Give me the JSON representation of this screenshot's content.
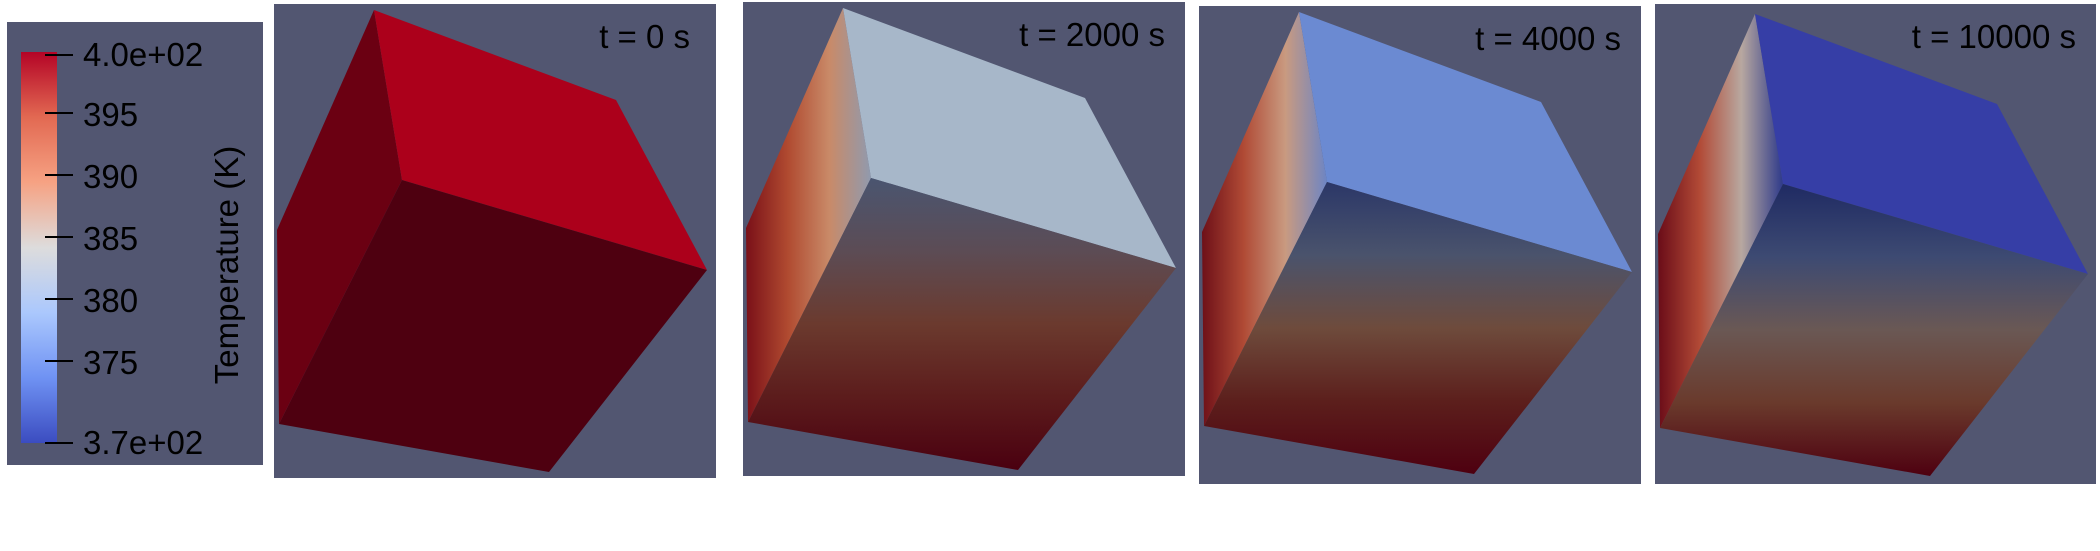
{
  "legend": {
    "title": "Temperature (K)",
    "max_label": "4.0e+02",
    "min_label": "3.7e+02",
    "ticks": [
      "395",
      "390",
      "385",
      "380",
      "375"
    ],
    "colormap": [
      "#b40426",
      "#e26952",
      "#f6a283",
      "#dddcdc",
      "#abc8fd",
      "#6f92f3",
      "#3b4cc0"
    ]
  },
  "panels": [
    {
      "label": "t = 0 s",
      "left_face": {
        "type": "solid",
        "color": "#6b0012"
      },
      "top_face": {
        "type": "solid",
        "color": "#ac001b"
      },
      "front_face": {
        "type": "solid",
        "color": "#4e0010"
      }
    },
    {
      "label": "t = 2000 s",
      "left_face": {
        "type": "gradient",
        "colors": [
          "#7a1018",
          "#b04a30",
          "#c98a68",
          "#909aae"
        ]
      },
      "top_face": {
        "type": "solid",
        "color": "#a7b7c9"
      },
      "front_face": {
        "type": "gradient",
        "colors": [
          "#4a5570",
          "#5c4c55",
          "#6b3a2e",
          "#5c1c1c",
          "#4a0010"
        ]
      }
    },
    {
      "label": "t = 4000 s",
      "left_face": {
        "type": "gradient",
        "colors": [
          "#6e1018",
          "#b04a35",
          "#c99a80",
          "#6d85c4"
        ]
      },
      "top_face": {
        "type": "solid",
        "color": "#6b8ad2"
      },
      "front_face": {
        "type": "gradient",
        "colors": [
          "#2b3768",
          "#4a536c",
          "#6e4b3c",
          "#5c1f1c",
          "#4e0010"
        ]
      }
    },
    {
      "label": "t = 10000 s",
      "left_face": {
        "type": "gradient",
        "colors": [
          "#6a0c18",
          "#b24a36",
          "#b8a8a0",
          "#2e3a8a"
        ]
      },
      "top_face": {
        "type": "solid",
        "color": "#363ea6"
      },
      "front_face": {
        "type": "gradient",
        "colors": [
          "#1f2a63",
          "#3d4a72",
          "#6a5854",
          "#6a3a2c",
          "#4e0010"
        ]
      }
    }
  ]
}
